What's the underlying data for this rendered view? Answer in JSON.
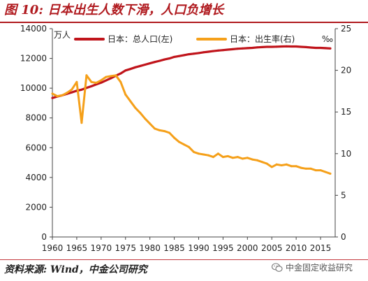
{
  "figure": {
    "title": "图 10:  日本出生人数下滑，人口负增长",
    "source": "资料来源:   Wind，中金公司研究",
    "watermark": "中金固定收益研究",
    "watermark_icon": "wechat-icon",
    "accent_color": "#b01a1f"
  },
  "chart_data": {
    "type": "line",
    "title": "",
    "x_ticks": [
      1960,
      1965,
      1970,
      1975,
      1980,
      1985,
      1990,
      1995,
      2000,
      2005,
      2010,
      2015
    ],
    "xlim": [
      1960,
      2018
    ],
    "left_axis": {
      "unit": "万人",
      "ylim": [
        0,
        14000
      ],
      "ticks": [
        0,
        2000,
        4000,
        6000,
        8000,
        10000,
        12000,
        14000
      ]
    },
    "right_axis": {
      "unit": "‰",
      "ylim": [
        0,
        25
      ],
      "ticks": [
        0,
        5,
        10,
        15,
        20,
        25
      ]
    },
    "grid": false,
    "legend_position": "top-center",
    "series": [
      {
        "name": "日本：总人口(左)",
        "axis": "left",
        "color": "#c0141b",
        "x": [
          1960,
          1961,
          1962,
          1963,
          1964,
          1965,
          1966,
          1967,
          1968,
          1969,
          1970,
          1971,
          1972,
          1973,
          1974,
          1975,
          1976,
          1977,
          1978,
          1979,
          1980,
          1981,
          1982,
          1983,
          1984,
          1985,
          1986,
          1987,
          1988,
          1989,
          1990,
          1991,
          1992,
          1993,
          1994,
          1995,
          1996,
          1997,
          1998,
          1999,
          2000,
          2001,
          2002,
          2003,
          2004,
          2005,
          2006,
          2007,
          2008,
          2009,
          2010,
          2011,
          2012,
          2013,
          2014,
          2015,
          2016,
          2017
        ],
        "values": [
          9340,
          9440,
          9520,
          9620,
          9720,
          9830,
          9900,
          10020,
          10130,
          10250,
          10370,
          10520,
          10670,
          10840,
          10990,
          11190,
          11290,
          11400,
          11490,
          11580,
          11670,
          11760,
          11840,
          11930,
          12000,
          12100,
          12160,
          12220,
          12280,
          12320,
          12360,
          12410,
          12450,
          12490,
          12530,
          12560,
          12590,
          12620,
          12650,
          12670,
          12690,
          12710,
          12740,
          12760,
          12780,
          12780,
          12790,
          12800,
          12810,
          12800,
          12800,
          12780,
          12760,
          12730,
          12710,
          12710,
          12690,
          12670
        ]
      },
      {
        "name": "日本：出生率(右)",
        "axis": "right",
        "color": "#f5a01a",
        "x": [
          1960,
          1961,
          1962,
          1963,
          1964,
          1965,
          1966,
          1967,
          1968,
          1969,
          1970,
          1971,
          1972,
          1973,
          1974,
          1975,
          1976,
          1977,
          1978,
          1979,
          1980,
          1981,
          1982,
          1983,
          1984,
          1985,
          1986,
          1987,
          1988,
          1989,
          1990,
          1991,
          1992,
          1993,
          1994,
          1995,
          1996,
          1997,
          1998,
          1999,
          2000,
          2001,
          2002,
          2003,
          2004,
          2005,
          2006,
          2007,
          2008,
          2009,
          2010,
          2011,
          2012,
          2013,
          2014,
          2015,
          2016,
          2017
        ],
        "values": [
          17.2,
          16.9,
          17.0,
          17.3,
          17.7,
          18.6,
          13.7,
          19.4,
          18.6,
          18.5,
          18.8,
          19.2,
          19.3,
          19.4,
          18.6,
          17.1,
          16.3,
          15.5,
          14.9,
          14.2,
          13.6,
          13.0,
          12.8,
          12.7,
          12.5,
          11.9,
          11.4,
          11.1,
          10.8,
          10.2,
          10.0,
          9.9,
          9.8,
          9.6,
          10.0,
          9.6,
          9.7,
          9.5,
          9.6,
          9.4,
          9.5,
          9.3,
          9.2,
          9.0,
          8.8,
          8.4,
          8.7,
          8.6,
          8.7,
          8.5,
          8.5,
          8.3,
          8.2,
          8.2,
          8.0,
          8.0,
          7.8,
          7.6
        ]
      }
    ]
  }
}
